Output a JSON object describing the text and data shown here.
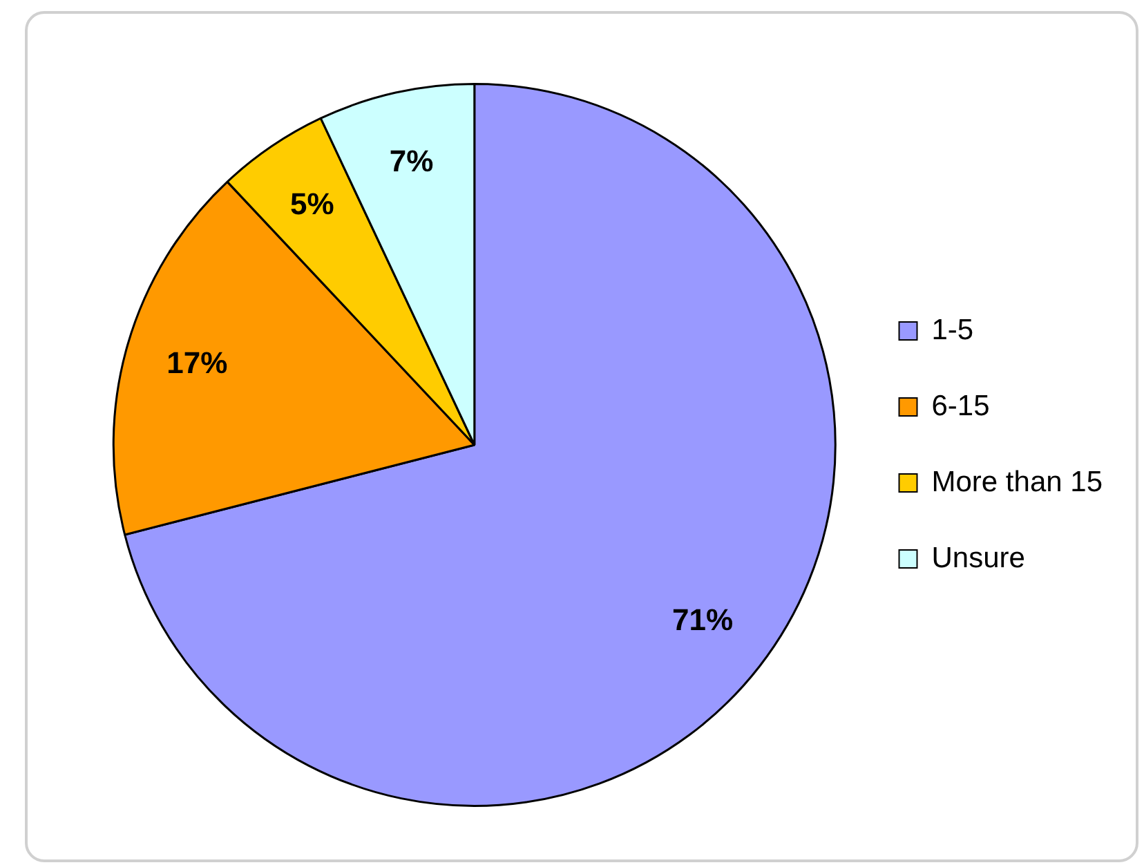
{
  "chart_data": {
    "type": "pie",
    "categories": [
      "1-5",
      "6-15",
      "More than 15",
      "Unsure"
    ],
    "values": [
      71,
      17,
      5,
      7
    ],
    "colors": [
      "#9999ff",
      "#ff9900",
      "#ffcc00",
      "#ccffff"
    ],
    "value_labels": [
      "71%",
      "17%",
      "5%",
      "7%"
    ],
    "legend": "right"
  }
}
